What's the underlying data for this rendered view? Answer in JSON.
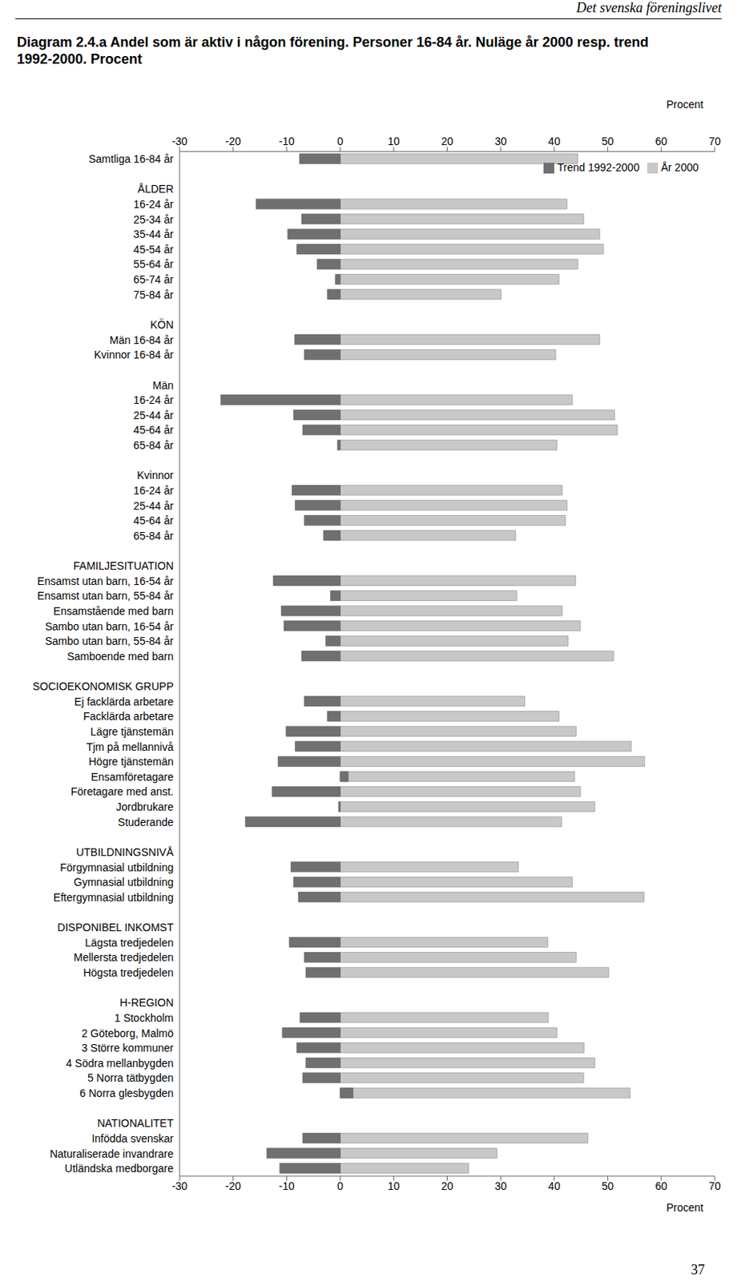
{
  "page": {
    "header": "Det svenska föreningslivet",
    "number": "37"
  },
  "chart_data": {
    "type": "bar",
    "orientation": "horizontal",
    "title": "Diagram 2.4.a  Andel som är aktiv i någon förening. Personer 16-84 år. Nuläge år 2000 resp. trend 1992-2000. Procent",
    "xlabel": "Procent",
    "xlim": [
      -30,
      70
    ],
    "xticks": [
      -30,
      -20,
      -10,
      0,
      10,
      20,
      30,
      40,
      50,
      60,
      70
    ],
    "grid": false,
    "legend": "top right",
    "categories": [
      "Samtliga 16-84 år",
      null,
      "ÅLDER",
      "16-24 år",
      "25-34 år",
      "35-44 år",
      "45-54 år",
      "55-64 år",
      "65-74 år",
      "75-84 år",
      null,
      "KÖN",
      "Män 16-84 år",
      "Kvinnor 16-84 år",
      null,
      "Män",
      "16-24 år",
      "25-44 år",
      "45-64 år",
      "65-84 år",
      null,
      "Kvinnor",
      "16-24 år",
      "25-44 år",
      "45-64 år",
      "65-84 år",
      null,
      "FAMILJESITUATION",
      "Ensamst utan barn, 16-54 år",
      "Ensamst utan barn, 55-84 år",
      "Ensamstående med barn",
      "Sambo utan barn, 16-54 år",
      "Sambo utan barn, 55-84 år",
      "Samboende med barn",
      null,
      "SOCIOEKONOMISK GRUPP",
      "Ej facklärda arbetare",
      "Facklärda arbetare",
      "Lägre tjänstemän",
      "Tjm på mellannivå",
      "Högre tjänstemän",
      "Ensamföretagare",
      "Företagare med anst.",
      "Jordbrukare",
      "Studerande",
      null,
      "UTBILDNINGSNIVÅ",
      "Förgymnasial utbildning",
      "Gymnasial utbildning",
      "Eftergymnasial utbildning",
      null,
      "DISPONIBEL INKOMST",
      "Lägsta tredjedelen",
      "Mellersta tredjedelen",
      "Högsta tredjedelen",
      null,
      "H-REGION",
      "1 Stockholm",
      "2 Göteborg, Malmö",
      "3 Större kommuner",
      "4 Södra mellanbygden",
      "5 Norra tätbygden",
      "6 Norra glesbygden",
      null,
      "NATIONALITET",
      "Infödda svenskar",
      "Naturaliserade invandrare",
      "Utländska medborgare"
    ],
    "series": [
      {
        "name": "År 2000",
        "color": "#c8c8c8",
        "values": [
          44.4,
          null,
          null,
          42.4,
          45.5,
          48.5,
          49.2,
          44.4,
          40.9,
          30.1,
          null,
          null,
          48.5,
          40.3,
          null,
          null,
          43.4,
          51.3,
          51.8,
          40.5,
          null,
          null,
          41.5,
          42.4,
          42.1,
          32.8,
          null,
          null,
          44.0,
          33.0,
          41.5,
          44.9,
          42.6,
          51.1,
          null,
          null,
          34.5,
          40.9,
          44.1,
          54.4,
          56.9,
          43.8,
          44.9,
          47.6,
          41.4,
          null,
          null,
          33.3,
          43.4,
          56.8,
          null,
          null,
          38.8,
          44.1,
          50.2,
          null,
          null,
          38.9,
          40.5,
          45.6,
          47.6,
          45.5,
          54.2,
          null,
          null,
          46.3,
          29.3,
          24.0
        ]
      },
      {
        "name": "Trend 1992-2000",
        "color": "#707070",
        "values": [
          -7.6,
          null,
          null,
          -15.7,
          -7.2,
          -9.8,
          -8.1,
          -4.3,
          -0.9,
          -2.4,
          null,
          null,
          -8.5,
          -6.7,
          null,
          null,
          -22.3,
          -8.7,
          -7.0,
          -0.5,
          null,
          null,
          -9.0,
          -8.4,
          -6.7,
          -3.1,
          null,
          null,
          -12.5,
          -1.8,
          -11.0,
          -10.5,
          -2.7,
          -7.2,
          null,
          null,
          -6.7,
          -2.4,
          -10.1,
          -8.4,
          -11.6,
          1.5,
          -12.7,
          -0.3,
          -17.7,
          null,
          null,
          -9.2,
          -8.7,
          -7.8,
          null,
          null,
          -9.5,
          -6.7,
          -6.4,
          null,
          null,
          -7.5,
          -10.8,
          -8.1,
          -6.4,
          -7.0,
          2.4,
          null,
          null,
          -7.0,
          -13.7,
          -11.3
        ]
      }
    ]
  }
}
